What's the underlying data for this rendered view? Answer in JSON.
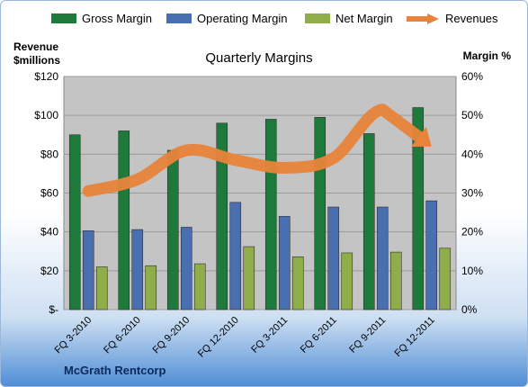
{
  "legend": [
    {
      "label": "Gross Margin",
      "color": "#1e7a3a",
      "kind": "bar"
    },
    {
      "label": "Operating Margin",
      "color": "#4a6fb0",
      "kind": "bar"
    },
    {
      "label": "Net Margin",
      "color": "#8fae4a",
      "kind": "bar"
    },
    {
      "label": "Revenues",
      "color": "#e8843a",
      "kind": "arrow"
    }
  ],
  "left_axis_title_line1": "Revenue",
  "left_axis_title_line2": "$millions",
  "right_axis_title": "Margin %",
  "company": "McGrath Rentcorp",
  "chart_data": {
    "type": "bar",
    "title": "Quarterly Margins",
    "categories": [
      "FQ 3-2010",
      "FQ 6-2010",
      "FQ 9-2010",
      "FQ 12-2010",
      "FQ 3-2011",
      "FQ 6-2011",
      "FQ 9-2011",
      "FQ 12-2011"
    ],
    "left_ticks": [
      "$-",
      "$20",
      "$40",
      "$60",
      "$80",
      "$100",
      "$120"
    ],
    "right_ticks": [
      "0%",
      "10%",
      "20%",
      "30%",
      "40%",
      "50%",
      "60%"
    ],
    "ylim_left": [
      0,
      120
    ],
    "ylim_right": [
      0,
      60
    ],
    "series": [
      {
        "name": "Gross Margin",
        "axis": "right",
        "color": "#1e7a3a",
        "values": [
          45,
          46,
          41,
          48,
          49,
          49.5,
          45.3,
          52
        ]
      },
      {
        "name": "Operating Margin",
        "axis": "right",
        "color": "#4a6fb0",
        "values": [
          20.3,
          20.6,
          21.2,
          27.6,
          24,
          26.4,
          26.4,
          28
        ]
      },
      {
        "name": "Net Margin",
        "axis": "right",
        "color": "#8fae4a",
        "values": [
          11,
          11.3,
          11.8,
          16.2,
          13.6,
          14.6,
          14.8,
          15.8
        ]
      },
      {
        "name": "Revenues",
        "axis": "left",
        "color": "#e8843a",
        "type": "line",
        "values": [
          61,
          67,
          82,
          77,
          73,
          78,
          103,
          84
        ]
      }
    ],
    "grid": true
  }
}
